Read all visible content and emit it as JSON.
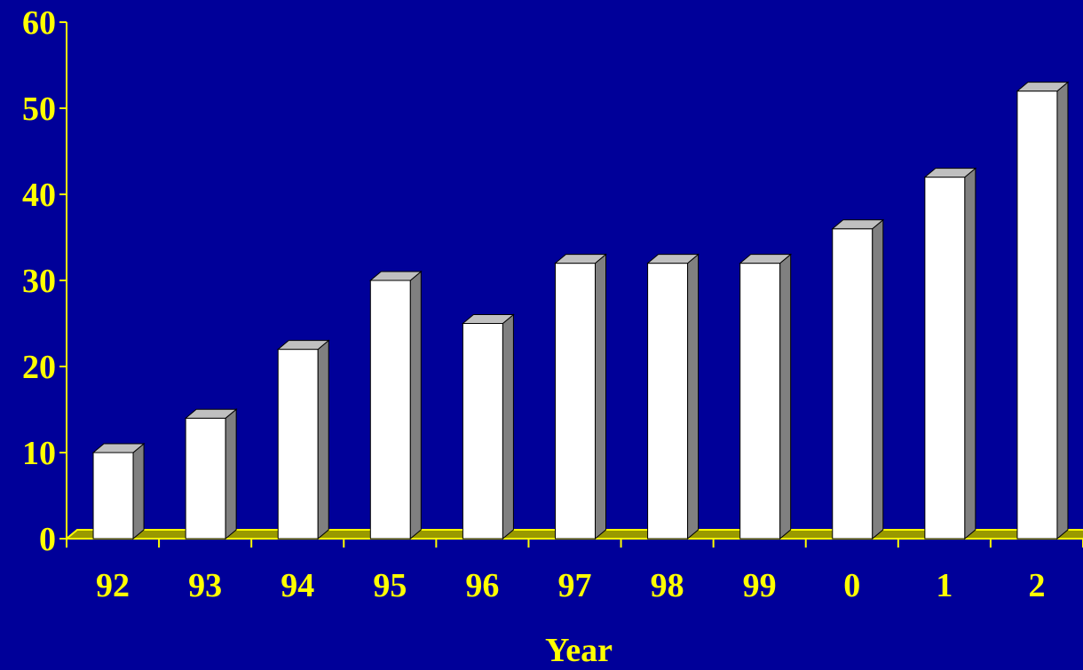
{
  "chart_data": {
    "type": "bar",
    "style": "3d-column",
    "categories": [
      "92",
      "93",
      "94",
      "95",
      "96",
      "97",
      "98",
      "99",
      "0",
      "1",
      "2"
    ],
    "values": [
      10,
      14,
      22,
      30,
      25,
      32,
      32,
      32,
      36,
      42,
      52
    ],
    "title": "",
    "xlabel": "Year",
    "ylabel": "",
    "ylim": [
      0,
      60
    ],
    "yticks": [
      0,
      10,
      20,
      30,
      40,
      50,
      60
    ],
    "grid": false,
    "legend": "none"
  },
  "colors": {
    "background": "#000099",
    "text": "#ffff00",
    "axis": "#ffff00",
    "floor": "#999900",
    "bar_front": "#ffffff",
    "bar_side": "#808080",
    "bar_top": "#c0c0c0"
  }
}
